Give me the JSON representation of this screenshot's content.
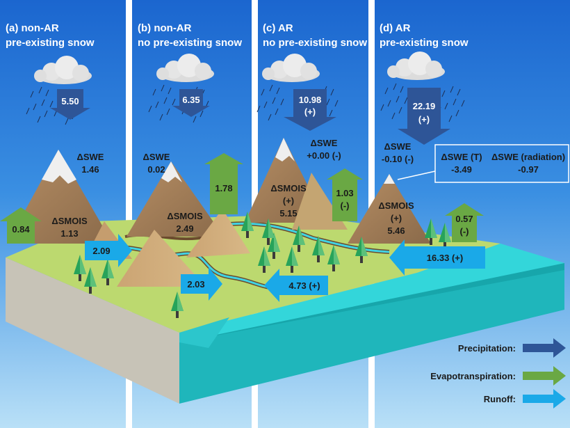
{
  "panels": [
    {
      "letter": "(a)",
      "type": "non-AR",
      "snow": "pre-existing snow"
    },
    {
      "letter": "(b)",
      "type": "non-AR",
      "snow": "no pre-existing snow"
    },
    {
      "letter": "(c)",
      "type": "AR",
      "snow": "no pre-existing snow"
    },
    {
      "letter": "(d)",
      "type": "AR",
      "snow": "pre-existing snow"
    }
  ],
  "precipitation": [
    {
      "value": "5.50",
      "sign": ""
    },
    {
      "value": "6.35",
      "sign": ""
    },
    {
      "value": "10.98",
      "sign": "(+)"
    },
    {
      "value": "22.19",
      "sign": "(+)"
    }
  ],
  "swe": [
    {
      "label": "ΔSWE",
      "value": "1.46"
    },
    {
      "label": "ΔSWE",
      "value": "0.02"
    },
    {
      "label": "ΔSWE",
      "value": "+0.00 (-)"
    },
    {
      "label": "ΔSWE",
      "value": "-0.10 (-)"
    }
  ],
  "smois": [
    {
      "label": "ΔSMOIS",
      "value": "1.13",
      "sign": ""
    },
    {
      "label": "ΔSMOIS",
      "value": "2.49",
      "sign": ""
    },
    {
      "label": "ΔSMOIS",
      "value": "5.15",
      "sign": "(+)"
    },
    {
      "label": "ΔSMOIS",
      "value": "5.46",
      "sign": "(+)"
    }
  ],
  "evapotranspiration": [
    {
      "value": "0.84",
      "sign": ""
    },
    {
      "value": "1.78",
      "sign": ""
    },
    {
      "value": "1.03",
      "sign": "(-)"
    },
    {
      "value": "0.57",
      "sign": "(-)"
    }
  ],
  "runoff": [
    {
      "value": "2.09"
    },
    {
      "value": "2.03"
    },
    {
      "value": "4.73 (+)"
    },
    {
      "value": "16.33 (+)"
    }
  ],
  "swe_breakdown": {
    "t_label": "ΔSWE (T)",
    "t_value": "-3.49",
    "rad_label": "ΔSWE (radiation)",
    "rad_value": "-0.97"
  },
  "legend": [
    {
      "label": "Precipitation:",
      "color": "#2e5597"
    },
    {
      "label": "Evapotranspiration:",
      "color": "#6aa844"
    },
    {
      "label": "Runoff:",
      "color": "#1aa9e8"
    }
  ],
  "colors": {
    "sky_top": "#1f6fd2",
    "sky_bottom": "#a8d7f5",
    "land_top": "#b8d86b",
    "water": "#2fd3d8",
    "mountain": "#a6805a",
    "snow": "#f2f2f2"
  }
}
